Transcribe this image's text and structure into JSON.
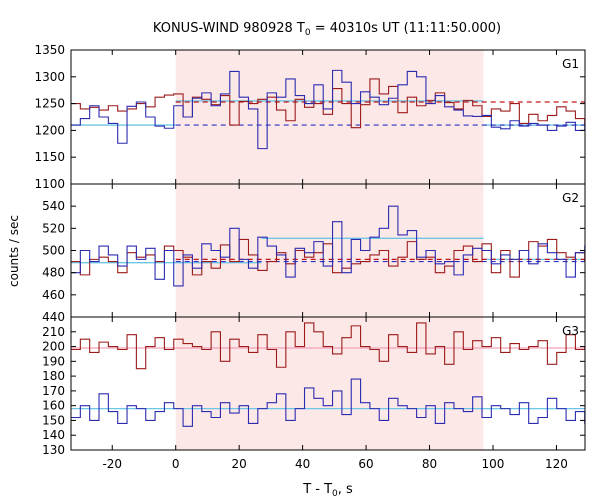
{
  "chart_data": {
    "type": "line",
    "title_prefix": "KONUS-WIND 980928 T",
    "title_sub": "0",
    "title_suffix": " = 40310s UT (11:11:50.000)",
    "xlabel_prefix": "T - T",
    "xlabel_sub": "0",
    "xlabel_suffix": ", s",
    "ylabel": "counts / sec",
    "xlim": [
      -33,
      129
    ],
    "x_ticks": [
      -20,
      0,
      20,
      40,
      60,
      80,
      100,
      120
    ],
    "highlight_interval": [
      0,
      97
    ],
    "colors": {
      "highlight": "#fde8e8",
      "series_red": "#9b1b1b",
      "series_blue": "#2b2bb0",
      "bg_cyan": "#6ec6e6",
      "bg_pink": "#f2a0b8",
      "dashed_red": "#c01818",
      "dashed_blue": "#3030c0"
    },
    "panels": [
      {
        "name": "G1",
        "ylim": [
          1100,
          1350
        ],
        "y_ticks": [
          1100,
          1150,
          1200,
          1250,
          1300,
          1350
        ],
        "series": [
          {
            "color_key": "series_red",
            "x0": -33,
            "step": 2.944,
            "values": [
              1250,
              1240,
              1243,
              1238,
              1246,
              1236,
              1240,
              1250,
              1244,
              1262,
              1266,
              1268,
              1225,
              1262,
              1258,
              1248,
              1265,
              1210,
              1254,
              1250,
              1258,
              1262,
              1238,
              1218,
              1258,
              1243,
              1250,
              1230,
              1278,
              1250,
              1205,
              1248,
              1296,
              1268,
              1282,
              1233,
              1262,
              1246,
              1256,
              1270,
              1252,
              1240,
              1256,
              1246,
              1226,
              1240,
              1236,
              1250,
              1213,
              1230,
              1218,
              1228,
              1244,
              1236,
              1222,
              1213
            ]
          },
          {
            "color_key": "series_blue",
            "x0": -33,
            "step": 2.944,
            "values": [
              1210,
              1222,
              1246,
              1225,
              1213,
              1176,
              1245,
              1253,
              1225,
              1208,
              1204,
              1246,
              1225,
              1260,
              1270,
              1246,
              1268,
              1310,
              1262,
              1240,
              1166,
              1270,
              1262,
              1296,
              1265,
              1250,
              1285,
              1240,
              1312,
              1290,
              1250,
              1272,
              1262,
              1248,
              1260,
              1285,
              1310,
              1300,
              1250,
              1265,
              1244,
              1238,
              1227,
              1226,
              1228,
              1206,
              1203,
              1218,
              1208,
              1213,
              1210,
              1200,
              1208,
              1215,
              1200,
              1212
            ]
          }
        ],
        "bg_lines": [
          {
            "color_key": "bg_cyan",
            "x_start": -33,
            "x_end": 0,
            "value": 1210
          },
          {
            "color_key": "bg_cyan",
            "x_start": 0,
            "x_end": 97,
            "value": 1255
          },
          {
            "color_key": "bg_cyan",
            "x_start": 97,
            "x_end": 129,
            "value": 1210
          }
        ],
        "dashed_lines": [
          {
            "color_key": "dashed_red",
            "x_start": 0,
            "x_end": 129,
            "value": 1253
          },
          {
            "color_key": "dashed_blue",
            "x_start": 0,
            "x_end": 129,
            "value": 1210
          }
        ]
      },
      {
        "name": "G2",
        "ylim": [
          440,
          560
        ],
        "y_ticks": [
          440,
          460,
          480,
          500,
          520,
          540
        ],
        "series": [
          {
            "color_key": "series_red",
            "x0": -33,
            "step": 2.944,
            "values": [
              490,
              478,
              492,
              494,
              490,
              480,
              498,
              494,
              496,
              490,
              504,
              500,
              494,
              478,
              490,
              484,
              505,
              490,
              510,
              496,
              482,
              490,
              498,
              488,
              500,
              494,
              498,
              506,
              480,
              484,
              488,
              490,
              496,
              500,
              486,
              494,
              508,
              492,
              494,
              480,
              486,
              500,
              504,
              490,
              506,
              480,
              500,
              476,
              500,
              508,
              504,
              510,
              498,
              494,
              498,
              490
            ]
          },
          {
            "color_key": "series_blue",
            "x0": -33,
            "step": 2.944,
            "values": [
              480,
              500,
              490,
              504,
              496,
              486,
              504,
              492,
              502,
              474,
              500,
              468,
              496,
              484,
              506,
              500,
              494,
              520,
              492,
              484,
              512,
              504,
              496,
              476,
              502,
              498,
              508,
              486,
              526,
              480,
              510,
              500,
              512,
              520,
              540,
              514,
              518,
              494,
              500,
              488,
              490,
              478,
              496,
              502,
              500,
              488,
              496,
              492,
              500,
              488,
              506,
              498,
              492,
              476,
              498,
              504
            ]
          }
        ],
        "bg_lines": [
          {
            "color_key": "bg_cyan",
            "x_start": -33,
            "x_end": 27,
            "value": 489
          },
          {
            "color_key": "bg_cyan",
            "x_start": 27,
            "x_end": 97,
            "value": 511
          },
          {
            "color_key": "bg_cyan",
            "x_start": 97,
            "x_end": 129,
            "value": 492
          }
        ],
        "dashed_lines": [
          {
            "color_key": "dashed_red",
            "x_start": 0,
            "x_end": 129,
            "value": 492
          },
          {
            "color_key": "dashed_blue",
            "x_start": 0,
            "x_end": 129,
            "value": 490
          }
        ]
      },
      {
        "name": "G3",
        "ylim": [
          130,
          220
        ],
        "y_ticks": [
          130,
          140,
          150,
          160,
          170,
          180,
          190,
          200,
          210
        ],
        "series": [
          {
            "color_key": "series_red",
            "x0": -33,
            "step": 2.944,
            "values": [
              198,
              205,
              196,
              203,
              200,
              198,
              208,
              185,
              200,
              206,
              198,
              205,
              202,
              200,
              198,
              210,
              190,
              205,
              200,
              196,
              208,
              198,
              186,
              210,
              200,
              216,
              210,
              200,
              195,
              206,
              214,
              200,
              198,
              190,
              208,
              200,
              196,
              216,
              195,
              200,
              188,
              210,
              198,
              204,
              200,
              206,
              196,
              202,
              198,
              200,
              204,
              188,
              196,
              208,
              198,
              200
            ]
          },
          {
            "color_key": "series_blue",
            "x0": -33,
            "step": 2.944,
            "values": [
              152,
              160,
              150,
              168,
              156,
              148,
              160,
              158,
              150,
              156,
              162,
              158,
              146,
              160,
              156,
              152,
              162,
              155,
              160,
              148,
              158,
              162,
              168,
              150,
              158,
              172,
              165,
              160,
              170,
              154,
              178,
              162,
              158,
              150,
              165,
              160,
              158,
              152,
              160,
              148,
              162,
              158,
              156,
              166,
              152,
              160,
              158,
              154,
              162,
              148,
              152,
              165,
              158,
              150,
              156,
              148
            ]
          }
        ],
        "bg_lines": [
          {
            "color_key": "bg_pink",
            "x_start": -33,
            "x_end": 129,
            "value": 199
          },
          {
            "color_key": "bg_cyan",
            "x_start": -33,
            "x_end": 129,
            "value": 158
          }
        ],
        "dashed_lines": []
      }
    ]
  }
}
